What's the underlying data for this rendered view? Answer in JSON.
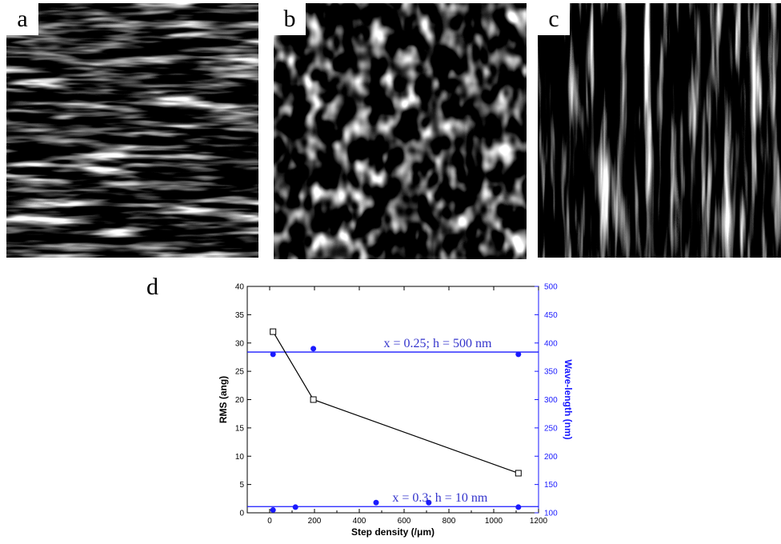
{
  "panels": [
    {
      "label": "a"
    },
    {
      "label": "b"
    },
    {
      "label": "c"
    }
  ],
  "chart_panel_label": "d",
  "colors": {
    "series_rms": "#000000",
    "series_wavelength": "#1a1aff",
    "annotation": "#3333cc"
  },
  "chart_data": {
    "type": "line",
    "xlabel": "Step density (/μm)",
    "ylabel": "RMS (ang)",
    "y2label": "Wave-length (nm)",
    "xlim": [
      -100,
      1200
    ],
    "ylim": [
      0,
      40
    ],
    "y2lim": [
      100,
      500
    ],
    "xticks": [
      0,
      200,
      400,
      600,
      800,
      1000,
      1200
    ],
    "yticks": [
      0,
      5,
      10,
      15,
      20,
      25,
      30,
      35,
      40
    ],
    "y2ticks": [
      100,
      150,
      200,
      250,
      300,
      350,
      400,
      450,
      500
    ],
    "series": [
      {
        "axis": "left",
        "marker": "open-square",
        "line": true,
        "x": [
          15,
          195,
          1110
        ],
        "y": [
          32,
          20,
          7
        ]
      },
      {
        "axis": "right",
        "marker": "filled-circle",
        "line": false,
        "x": [
          15,
          195,
          1110
        ],
        "y": [
          380,
          390,
          380
        ]
      },
      {
        "axis": "right",
        "marker": "filled-circle",
        "line": false,
        "x": [
          15,
          115,
          475,
          710,
          1110
        ],
        "y": [
          105,
          110,
          118,
          118,
          110
        ]
      }
    ],
    "reference_lines": [
      {
        "axis": "right",
        "y": 384,
        "label": "x = 0.25; h = 500 nm"
      },
      {
        "axis": "right",
        "y": 111,
        "label": "x = 0.3; h = 10 nm"
      }
    ]
  }
}
